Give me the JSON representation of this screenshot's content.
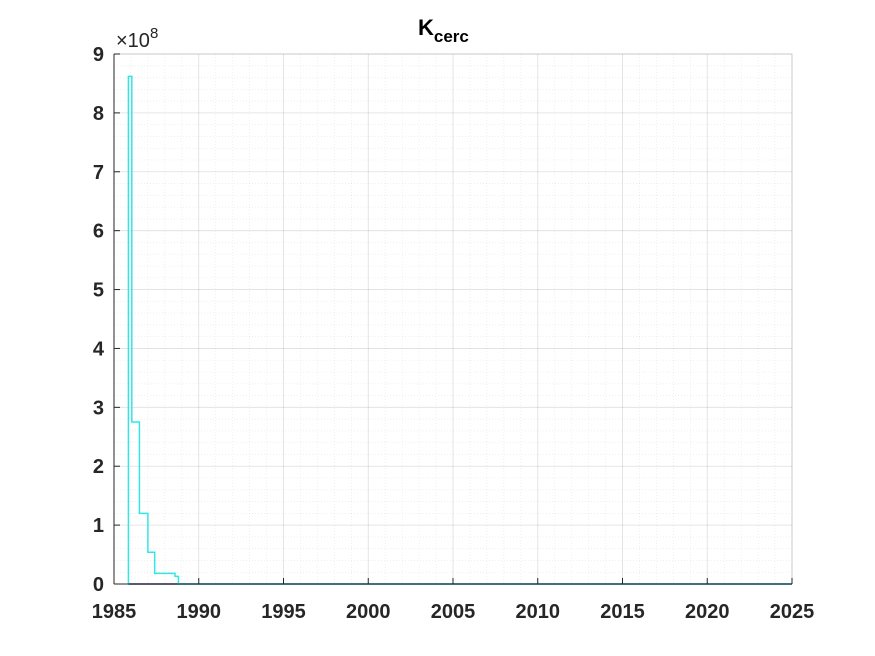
{
  "chart_data": {
    "type": "line",
    "title": "K",
    "title_subscript": "cerc",
    "xlabel": "",
    "ylabel": "",
    "xlim": [
      1985,
      2025
    ],
    "ylim": [
      0,
      9
    ],
    "y_exponent_label": "×10",
    "y_exponent": "8",
    "xticks": [
      1985,
      1990,
      1995,
      2000,
      2005,
      2010,
      2015,
      2020,
      2025
    ],
    "yticks": [
      0,
      1,
      2,
      3,
      4,
      5,
      6,
      7,
      8,
      9
    ],
    "xtick_labels": [
      "1985",
      "1990",
      "1995",
      "2000",
      "2005",
      "2010",
      "2015",
      "2020",
      "2025"
    ],
    "ytick_labels": [
      "0",
      "1",
      "2",
      "3",
      "4",
      "5",
      "6",
      "7",
      "8",
      "9"
    ],
    "grid": true,
    "minor_grid": true,
    "series": [
      {
        "color": "#33e6e6",
        "step": true,
        "x": [
          1985.85,
          1985.85,
          1986.05,
          1986.05,
          1986.5,
          1986.5,
          1987.0,
          1987.0,
          1987.4,
          1987.4,
          1988.6,
          1988.6,
          1988.8,
          1988.8,
          2025
        ],
        "y": [
          0,
          8.62,
          8.62,
          2.75,
          2.75,
          1.2,
          1.2,
          0.54,
          0.54,
          0.18,
          0.18,
          0.13,
          0.13,
          0.0,
          0.0
        ]
      },
      {
        "color": "#1a1a80",
        "step": true,
        "x": [
          1985.85,
          1988.8,
          2025
        ],
        "y": [
          0.0,
          0.0,
          0.0
        ]
      }
    ]
  }
}
